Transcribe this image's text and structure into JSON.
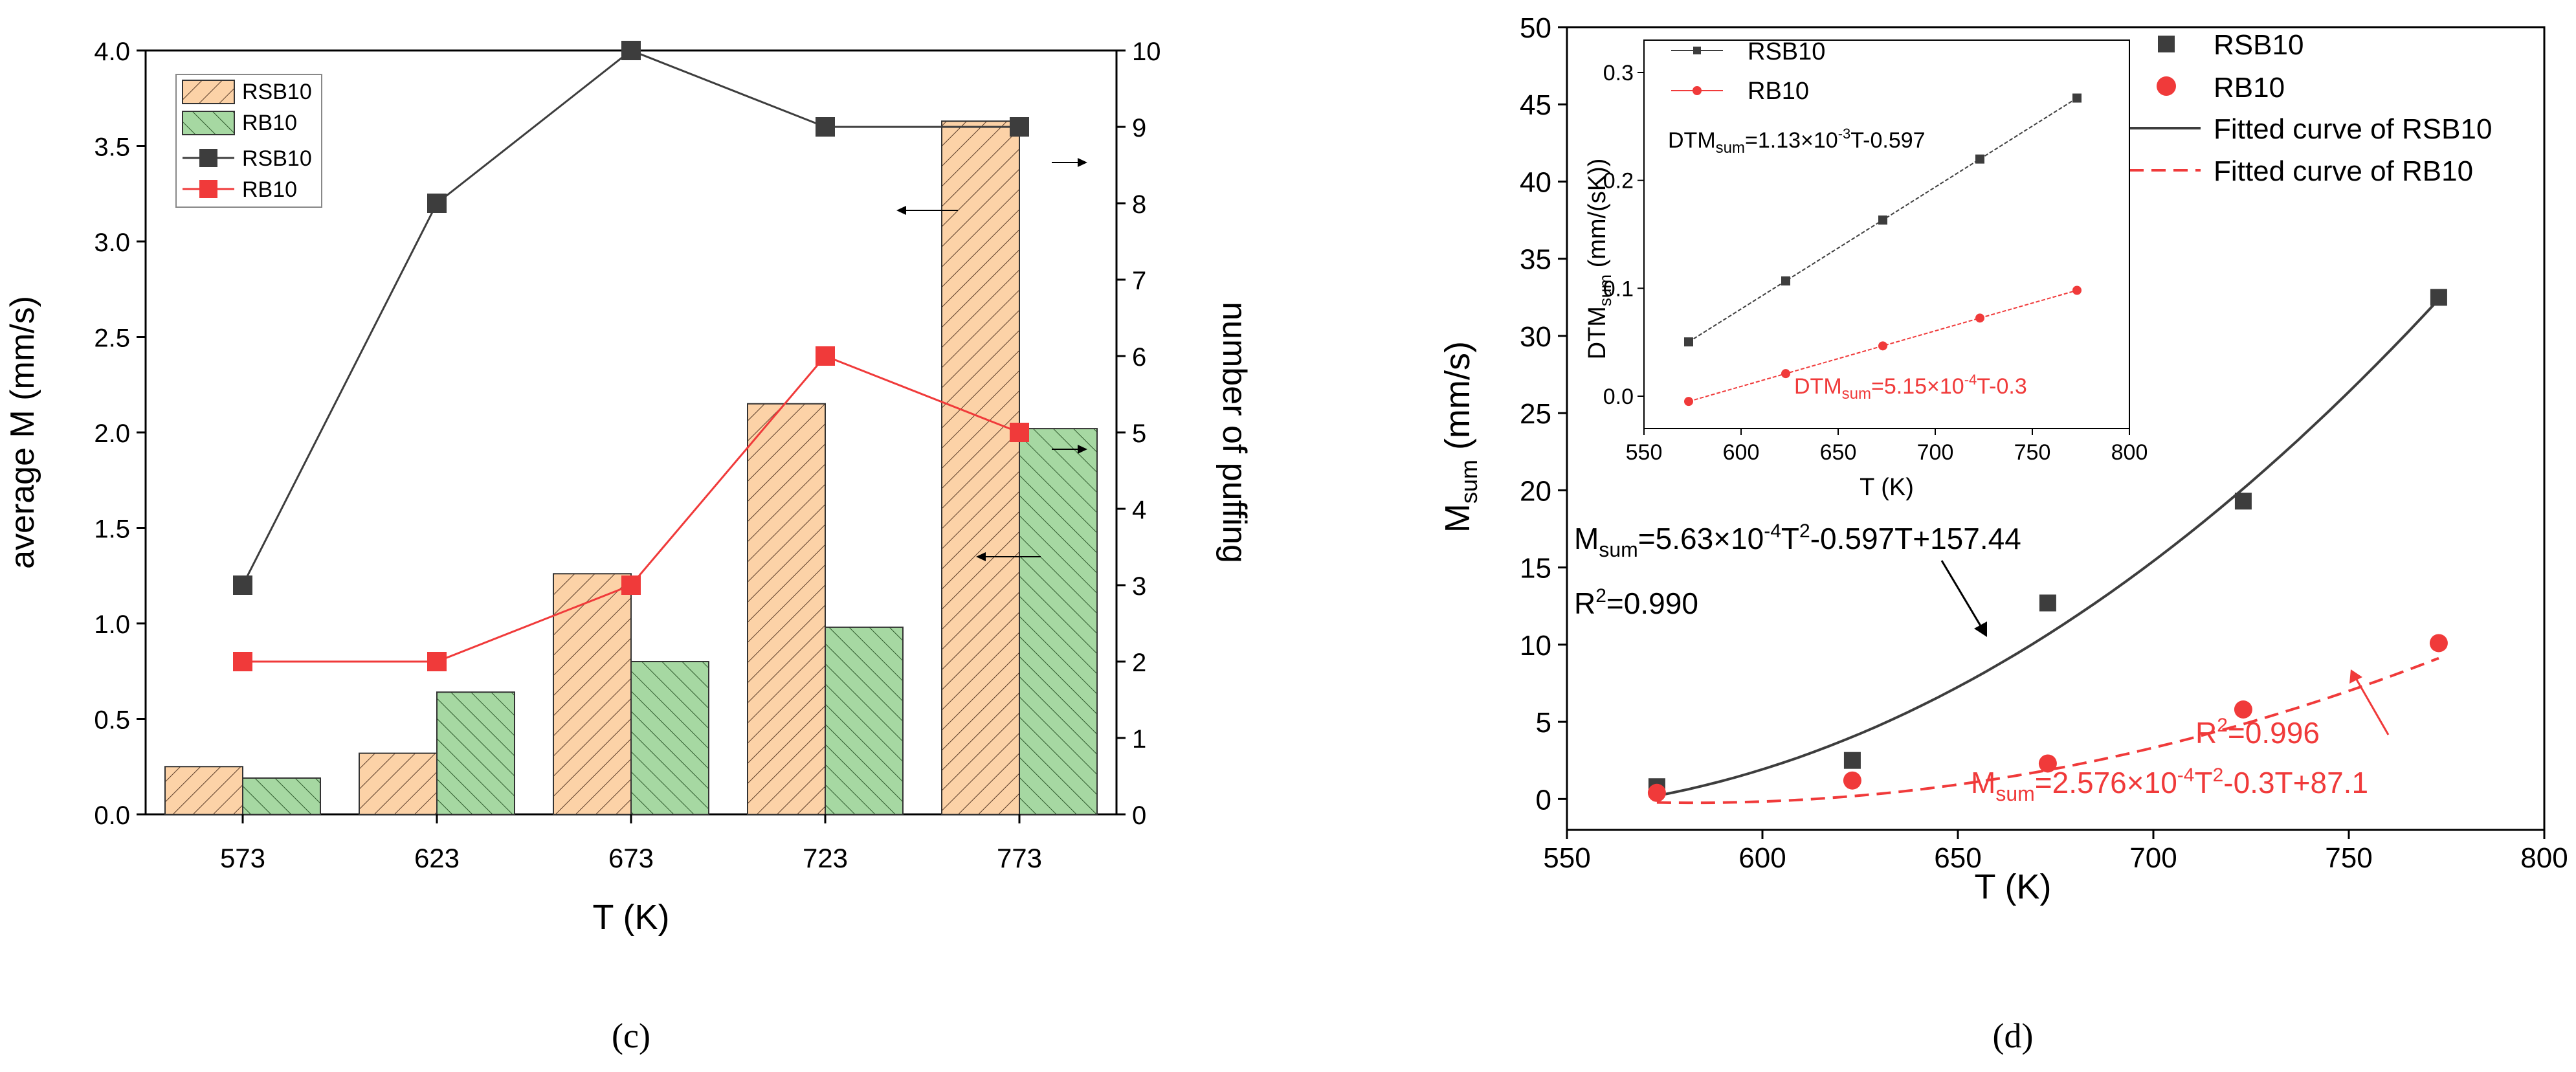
{
  "chart_data": [
    {
      "panel": "(c)",
      "type": "bar",
      "xlabel": "T (K)",
      "ylabel": "average M (mm/s)",
      "y2label": "number of puffing",
      "categories": [
        "573",
        "623",
        "673",
        "723",
        "773"
      ],
      "ylim": [
        0,
        4.0
      ],
      "yticks": [
        "0.0",
        "0.5",
        "1.0",
        "1.5",
        "2.0",
        "2.5",
        "3.0",
        "3.5",
        "4.0"
      ],
      "y2lim": [
        0,
        10
      ],
      "y2ticks": [
        "0",
        "1",
        "2",
        "3",
        "4",
        "5",
        "6",
        "7",
        "8",
        "9",
        "10"
      ],
      "bar_series": [
        {
          "name": "RSB10",
          "values": [
            0.25,
            0.32,
            1.26,
            2.15,
            3.63
          ],
          "color": "#fcd2a7",
          "edge": "#333333"
        },
        {
          "name": "RB10",
          "values": [
            0.19,
            0.64,
            0.8,
            0.98,
            2.02
          ],
          "color": "#a6d8a2",
          "edge": "#333333"
        }
      ],
      "line_series": [
        {
          "name": "RSB10",
          "values": [
            3,
            8,
            10,
            9,
            9
          ],
          "color": "#3d3d3d",
          "marker": "square"
        },
        {
          "name": "RB10",
          "values": [
            2,
            2,
            3,
            6,
            5
          ],
          "color": "#f03a3a",
          "marker": "square"
        }
      ],
      "legend": [
        "RSB10",
        "RB10",
        "RSB10",
        "RB10"
      ],
      "legend_position": "top-left"
    },
    {
      "panel": "(d)",
      "type": "scatter",
      "xlabel": "T (K)",
      "ylabel_main": "M",
      "ylabel_sub": "sum",
      "ylabel_tail": " (mm/s)",
      "xlim": [
        550,
        800
      ],
      "xticks": [
        "550",
        "600",
        "650",
        "700",
        "750",
        "800"
      ],
      "ylim": [
        -2,
        50
      ],
      "yticks": [
        "0",
        "5",
        "10",
        "15",
        "20",
        "25",
        "30",
        "35",
        "40",
        "45",
        "50"
      ],
      "series": [
        {
          "name": "RSB10",
          "x": [
            573,
            623,
            673,
            723,
            773
          ],
          "y": [
            0.8,
            2.5,
            12.7,
            19.3,
            32.5
          ],
          "color": "#3d3d3d",
          "marker": "square"
        },
        {
          "name": "RB10",
          "x": [
            573,
            623,
            673,
            723,
            773
          ],
          "y": [
            0.4,
            1.2,
            2.3,
            5.8,
            10.1
          ],
          "color": "#f03a3a",
          "marker": "circle"
        }
      ],
      "fits": [
        {
          "name": "Fitted curve of RSB10",
          "a": 0.000563,
          "b": -0.597,
          "c": 157.44,
          "color": "#3d3d3d",
          "style": "solid"
        },
        {
          "name": "Fitted curve of RB10",
          "a": 0.0002576,
          "b": -0.3,
          "c": 87.1,
          "color": "#f03a3a",
          "style": "dashed"
        }
      ],
      "legend": [
        "RSB10",
        "RB10",
        "Fitted curve of RSB10",
        "Fitted curve of RB10"
      ],
      "legend_position": "top-right",
      "annotations": {
        "rsb_eq_main": "M",
        "rsb_eq_sub": "sum",
        "rsb_eq_a": "=5.63×10",
        "rsb_eq_exp": "-4",
        "rsb_eq_b": "T",
        "rsb_eq_exp2": "2",
        "rsb_eq_c": "-0.597T+157.44",
        "rsb_r2_a": "R",
        "rsb_r2_exp": "2",
        "rsb_r2_b": "=0.990",
        "rb_r2_a": "R",
        "rb_r2_exp": "2",
        "rb_r2_b": "=0.996",
        "rb_eq_main": "M",
        "rb_eq_sub": "sum",
        "rb_eq_a": "=2.576×10",
        "rb_eq_exp": "-4",
        "rb_eq_b": "T",
        "rb_eq_exp2": "2",
        "rb_eq_c": "-0.3T+87.1"
      },
      "inset": {
        "xlabel": "T (K)",
        "ylabel_main": "DTM",
        "ylabel_sub": "sum",
        "ylabel_tail": " (mm/(sK))",
        "xlim": [
          550,
          800
        ],
        "xticks": [
          "550",
          "600",
          "650",
          "700",
          "750",
          "800"
        ],
        "ylim": [
          -0.03,
          0.33
        ],
        "yticks": [
          "0.0",
          "0.1",
          "0.2",
          "0.3"
        ],
        "series": [
          {
            "name": "RSB10",
            "x": [
              573,
              623,
              673,
              723,
              773
            ],
            "y": [
              0.0503,
              0.1068,
              0.1633,
              0.2198,
              0.2763
            ],
            "color": "#3d3d3d"
          },
          {
            "name": "RB10",
            "x": [
              573,
              623,
              673,
              723,
              773
            ],
            "y": [
              -0.0049,
              0.0209,
              0.0466,
              0.0724,
              0.0981
            ],
            "color": "#f03a3a"
          }
        ],
        "legend": [
          "RSB10",
          "RB10"
        ],
        "eq_rsb_main": "DTM",
        "eq_rsb_sub": "sum",
        "eq_rsb_a": "=1.13×10",
        "eq_rsb_exp": "-3",
        "eq_rsb_b": "T-0.597",
        "eq_rb_main": "DTM",
        "eq_rb_sub": "sum",
        "eq_rb_a": "=5.15×10",
        "eq_rb_exp": "-4",
        "eq_rb_b": "T-0.3"
      }
    }
  ]
}
